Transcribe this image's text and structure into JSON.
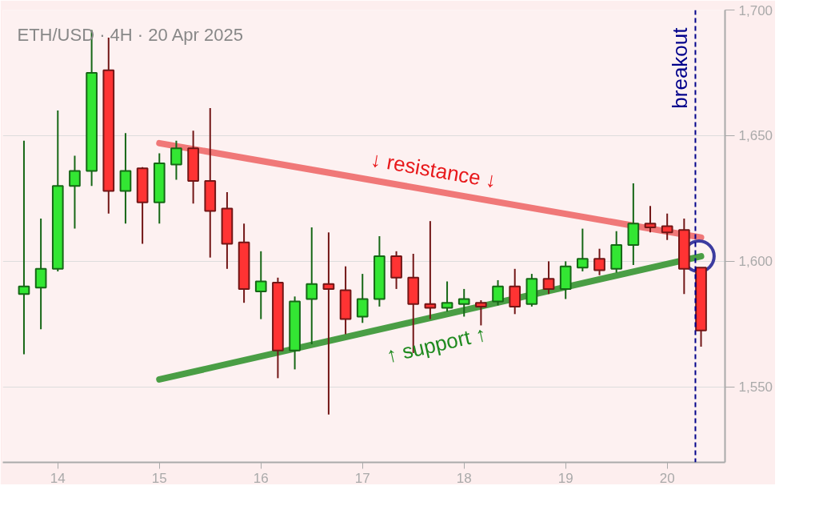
{
  "chart_data": {
    "type": "candlestick",
    "title": "ETH/USD · 4H · 20 Apr 2025",
    "x": [
      "2025-04-13T16:00",
      "2025-04-13T20:00",
      "2025-04-14T00:00",
      "2025-04-14T04:00",
      "2025-04-14T08:00",
      "2025-04-14T12:00",
      "2025-04-14T16:00",
      "2025-04-14T20:00",
      "2025-04-15T00:00",
      "2025-04-15T04:00",
      "2025-04-15T08:00",
      "2025-04-15T12:00",
      "2025-04-15T16:00",
      "2025-04-15T20:00",
      "2025-04-16T00:00",
      "2025-04-16T04:00",
      "2025-04-16T08:00",
      "2025-04-16T12:00",
      "2025-04-16T16:00",
      "2025-04-16T20:00",
      "2025-04-17T00:00",
      "2025-04-17T04:00",
      "2025-04-17T08:00",
      "2025-04-17T12:00",
      "2025-04-17T16:00",
      "2025-04-17T20:00",
      "2025-04-18T00:00",
      "2025-04-18T04:00",
      "2025-04-18T08:00",
      "2025-04-18T12:00",
      "2025-04-18T16:00",
      "2025-04-18T20:00",
      "2025-04-19T00:00",
      "2025-04-19T04:00",
      "2025-04-19T08:00",
      "2025-04-19T12:00",
      "2025-04-19T16:00",
      "2025-04-19T20:00",
      "2025-04-20T00:00",
      "2025-04-20T04:00",
      "2025-04-20T08:00"
    ],
    "ohlc": [
      [
        1587,
        1648,
        1563,
        1590
      ],
      [
        1589.5,
        1617,
        1573,
        1597
      ],
      [
        1597,
        1660,
        1596,
        1630
      ],
      [
        1630,
        1642,
        1613,
        1636
      ],
      [
        1636,
        1692,
        1630,
        1675
      ],
      [
        1676,
        1689,
        1619,
        1628
      ],
      [
        1628,
        1651,
        1615,
        1636
      ],
      [
        1637,
        1637.5,
        1607,
        1623.5
      ],
      [
        1623.5,
        1643,
        1615,
        1639
      ],
      [
        1638.5,
        1648,
        1632.5,
        1645
      ],
      [
        1645,
        1652,
        1623,
        1632
      ],
      [
        1632,
        1661,
        1601.5,
        1620
      ],
      [
        1621,
        1627.5,
        1597,
        1607
      ],
      [
        1607.5,
        1615,
        1583.5,
        1589
      ],
      [
        1588,
        1604,
        1577,
        1592
      ],
      [
        1591.5,
        1593.5,
        1553.5,
        1564.5
      ],
      [
        1564.5,
        1586,
        1557,
        1584
      ],
      [
        1585,
        1613.5,
        1567,
        1591
      ],
      [
        1591,
        1611.5,
        1539,
        1589
      ],
      [
        1588.5,
        1598,
        1571,
        1577
      ],
      [
        1578,
        1595,
        1575.5,
        1585
      ],
      [
        1585,
        1610,
        1582,
        1602
      ],
      [
        1602,
        1604,
        1589,
        1593.5
      ],
      [
        1593.5,
        1603,
        1563.5,
        1583
      ],
      [
        1583,
        1616,
        1577,
        1581.5
      ],
      [
        1581.5,
        1592,
        1580,
        1583.5
      ],
      [
        1583,
        1589,
        1578,
        1585
      ],
      [
        1583.5,
        1584.5,
        1574.5,
        1582
      ],
      [
        1584,
        1592.5,
        1582.5,
        1590
      ],
      [
        1590,
        1597,
        1579,
        1582
      ],
      [
        1583,
        1595,
        1582,
        1593
      ],
      [
        1593,
        1600,
        1587,
        1589
      ],
      [
        1589,
        1600,
        1585,
        1598
      ],
      [
        1597.5,
        1613,
        1596,
        1601
      ],
      [
        1601,
        1605,
        1594.5,
        1596.5
      ],
      [
        1597,
        1612,
        1595.5,
        1606.5
      ],
      [
        1606.5,
        1631,
        1598.5,
        1615
      ],
      [
        1615,
        1622,
        1611.5,
        1613.5
      ],
      [
        1614,
        1619,
        1608.5,
        1611.5
      ],
      [
        1612.5,
        1617,
        1587,
        1597
      ],
      [
        1597.5,
        1597.5,
        1566,
        1572.5
      ]
    ],
    "colors": [
      "#33e633",
      "#33e633",
      "#33e633",
      "#33e633",
      "#33e633",
      "#ff3333",
      "#33e633",
      "#ff3333",
      "#33e633",
      "#33e633",
      "#ff3333",
      "#ff3333",
      "#ff3333",
      "#ff3333",
      "#33e633",
      "#ff3333",
      "#33e633",
      "#33e633",
      "#ff3333",
      "#ff3333",
      "#33e633",
      "#33e633",
      "#ff3333",
      "#ff3333",
      "#ff3333",
      "#33e633",
      "#33e633",
      "#ff3333",
      "#33e633",
      "#ff3333",
      "#33e633",
      "#ff3333",
      "#33e633",
      "#33e633",
      "#ff3333",
      "#33e633",
      "#33e633",
      "#ff3333",
      "#ff3333",
      "#ff3333",
      "#ff3333"
    ],
    "series": [
      {
        "type": "line",
        "color": "#f07878",
        "x": [
          "2025-04-15T00:00",
          "2025-04-20T08:00"
        ],
        "values": [
          1647,
          1609.5
        ]
      },
      {
        "type": "line",
        "color": "#4a9e45",
        "x": [
          "2025-04-15T00:00",
          "2025-04-20T08:00"
        ],
        "values": [
          1553,
          1602
        ]
      },
      {
        "type": "scatter",
        "color": "#3c3ca0",
        "marker": "circle",
        "x": [
          "2025-04-20T07:30"
        ],
        "values": [
          1602
        ]
      }
    ],
    "annotations": [
      "↓ resistance ↓",
      "↑ support ↑"
    ],
    "ref_lines": [
      {
        "axis": "x",
        "value": "2025-04-20T06:40",
        "label": "breakout",
        "color": "#00008b",
        "line_style": "dashed"
      }
    ],
    "xlim": [
      "2025-04-13T11:00",
      "2025-04-20T13:40"
    ],
    "xticks": [
      {
        "value": "2025-04-14",
        "label": "14"
      },
      {
        "value": "2025-04-15",
        "label": "15"
      },
      {
        "value": "2025-04-16",
        "label": "16"
      },
      {
        "value": "2025-04-17",
        "label": "17"
      },
      {
        "value": "2025-04-18",
        "label": "18"
      },
      {
        "value": "2025-04-19",
        "label": "19"
      },
      {
        "value": "2025-04-20",
        "label": "20"
      }
    ],
    "ylim": [
      1520,
      1700
    ],
    "yticks": [
      {
        "value": 1550,
        "label": "1,550"
      },
      {
        "value": 1600,
        "label": "1,600"
      },
      {
        "value": 1650,
        "label": "1,650"
      },
      {
        "value": 1700,
        "label": "1,700"
      }
    ],
    "grid": "y"
  }
}
